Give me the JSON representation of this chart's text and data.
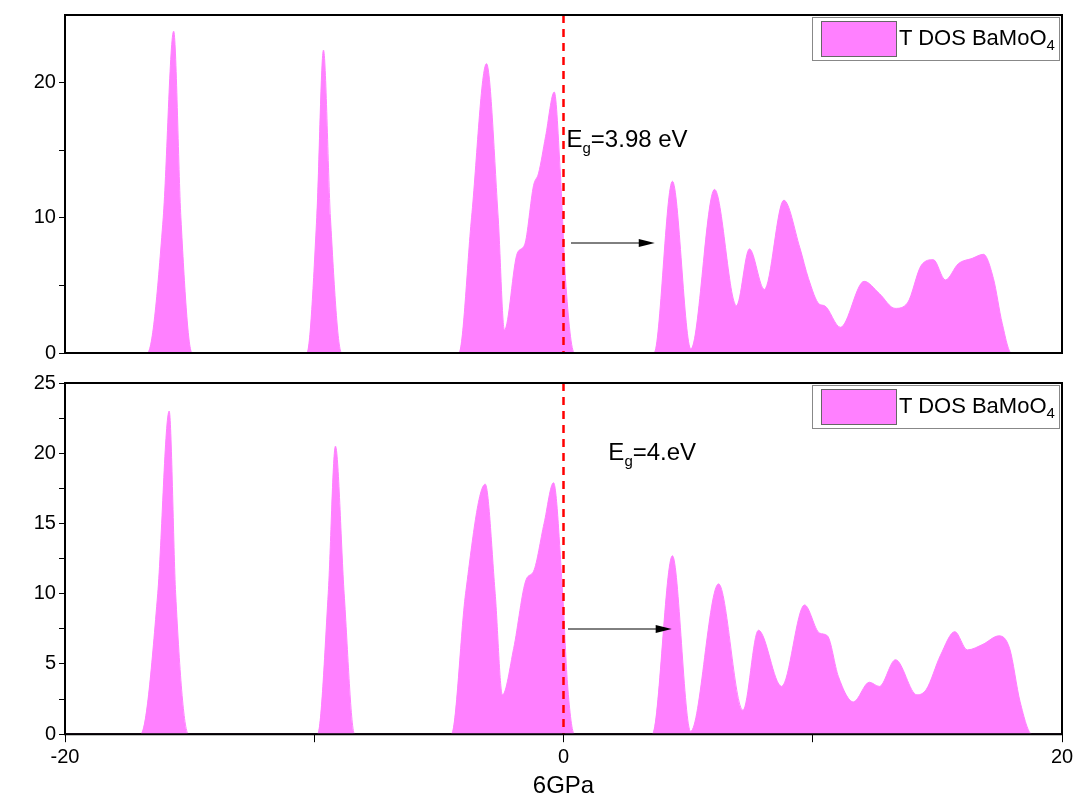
{
  "chart_data": [
    {
      "type": "area",
      "xlim": [
        -20,
        20
      ],
      "ylim": [
        0,
        25
      ],
      "yticks": [
        0,
        {
          "value": 5,
          "label": null
        },
        10,
        {
          "value": 15,
          "label": null
        },
        20
      ],
      "tick_labels": "y",
      "legend": "top right",
      "annotations": [
        "E$_{g}$=3.98 eV"
      ],
      "ref_lines": [
        {
          "axis": "x",
          "value": 0,
          "label": null,
          "color": "#ff0000",
          "line_style": "dashed"
        }
      ],
      "series": [
        {
          "name": "T DOS BaMoO$_{4}$",
          "color": "#ff80ff",
          "x": [
            -20,
            -16.7,
            -16.06,
            -15.64,
            -15.35,
            -14.9,
            -10.3,
            -9.9,
            -9.63,
            -9.35,
            -8.9,
            -4.2,
            -3.69,
            -3.09,
            -2.62,
            -2.37,
            -1.85,
            -1.56,
            -1.2,
            -1.0,
            -0.72,
            -0.37,
            -0.12,
            0.08,
            0.44,
            3.63,
            4.37,
            5.11,
            6.06,
            6.94,
            7.46,
            8.06,
            8.84,
            9.48,
            9.83,
            10.27,
            10.47,
            11.11,
            12.06,
            12.67,
            13.3,
            13.8,
            14.36,
            14.84,
            15.32,
            15.84,
            16.4,
            16.85,
            17.25,
            17.6,
            17.97,
            20
          ],
          "values": [
            0,
            0,
            10,
            23.8,
            10,
            0,
            0,
            10,
            22.4,
            10,
            0,
            0,
            10,
            21.4,
            10,
            1.7,
            7.4,
            8.0,
            12.4,
            13.3,
            16.0,
            19.3,
            13.1,
            5.5,
            0,
            0,
            12.7,
            0.3,
            12.1,
            3.5,
            7.7,
            4.7,
            11.3,
            7.8,
            5.5,
            3.6,
            3.5,
            1.9,
            5.3,
            4.4,
            3.3,
            3.7,
            6.5,
            6.9,
            5.4,
            6.6,
            7.0,
            7.3,
            5.5,
            2.2,
            0,
            0
          ]
        }
      ]
    },
    {
      "type": "area",
      "xlim": [
        -20,
        20
      ],
      "xticks": [
        -20,
        {
          "value": -10,
          "label": null
        },
        0,
        {
          "value": 10,
          "label": null
        },
        20
      ],
      "ylim": [
        0,
        25
      ],
      "yticks": [
        0,
        {
          "value": 2.5,
          "label": null
        },
        5,
        {
          "value": 7.5,
          "label": null
        },
        10,
        {
          "value": 12.5,
          "label": null
        },
        15,
        {
          "value": 17.5,
          "label": null
        },
        20,
        {
          "value": 22.5,
          "label": null
        },
        25
      ],
      "xlabel": "6GPa",
      "legend": "top right",
      "annotations": [
        "E$_{g}$=4.eV"
      ],
      "ref_lines": [
        {
          "axis": "x",
          "value": 0,
          "label": null,
          "color": "#ff0000",
          "line_style": "dashed"
        }
      ],
      "series": [
        {
          "name": "T DOS BaMoO$_{4}$",
          "color": "#ff80ff",
          "x": [
            -20,
            -16.97,
            -16.28,
            -15.82,
            -15.56,
            -15.04,
            -9.87,
            -9.44,
            -9.15,
            -8.8,
            -8.38,
            -4.5,
            -3.93,
            -3.14,
            -2.74,
            -2.45,
            -2.0,
            -1.5,
            -1.2,
            -0.78,
            -0.4,
            -0.04,
            0.16,
            0.44,
            3.56,
            4.37,
            5.1,
            6.22,
            7.2,
            7.82,
            8.75,
            9.67,
            10.27,
            10.59,
            11.03,
            11.63,
            12.27,
            12.67,
            13.32,
            14.18,
            14.56,
            15.12,
            15.7,
            16.2,
            16.83,
            17.47,
            17.9,
            18.32,
            18.8,
            20
          ],
          "values": [
            0,
            0,
            10,
            23.0,
            10,
            0,
            0,
            10,
            20.5,
            10,
            0,
            0,
            10,
            17.8,
            10,
            2.8,
            6.1,
            11.0,
            11.6,
            15.0,
            17.9,
            10.2,
            3.6,
            0,
            0,
            12.7,
            0.2,
            10.7,
            1.7,
            7.4,
            3.4,
            9.2,
            7.2,
            7.0,
            4.1,
            2.3,
            3.7,
            3.4,
            5.3,
            2.8,
            3.2,
            5.6,
            7.3,
            6.0,
            6.4,
            7.0,
            6.1,
            2.3,
            0,
            0
          ]
        }
      ]
    }
  ]
}
